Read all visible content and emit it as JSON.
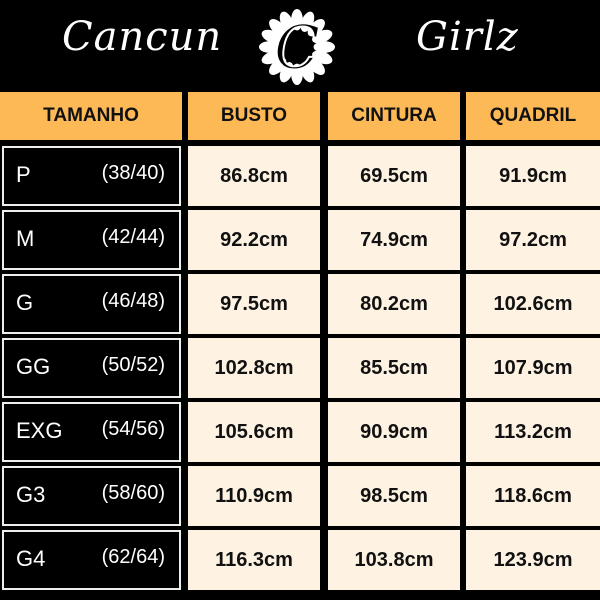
{
  "brand": {
    "left": "Cancun",
    "right": "Girlz",
    "logo_letter": "C"
  },
  "colors": {
    "header": "#FDB955",
    "cell": "#FEF2E2",
    "background": "#000000"
  },
  "headers": [
    "TAMANHO",
    "BUSTO",
    "CINTURA",
    "QUADRIL"
  ],
  "rows": [
    {
      "size": "P",
      "range": "(38/40)",
      "busto": "86.8cm",
      "cintura": "69.5cm",
      "quadril": "91.9cm"
    },
    {
      "size": "M",
      "range": "(42/44)",
      "busto": "92.2cm",
      "cintura": "74.9cm",
      "quadril": "97.2cm"
    },
    {
      "size": "G",
      "range": "(46/48)",
      "busto": "97.5cm",
      "cintura": "80.2cm",
      "quadril": "102.6cm"
    },
    {
      "size": "GG",
      "range": "(50/52)",
      "busto": "102.8cm",
      "cintura": "85.5cm",
      "quadril": "107.9cm"
    },
    {
      "size": "EXG",
      "range": "(54/56)",
      "busto": "105.6cm",
      "cintura": "90.9cm",
      "quadril": "113.2cm"
    },
    {
      "size": "G3",
      "range": "(58/60)",
      "busto": "110.9cm",
      "cintura": "98.5cm",
      "quadril": "118.6cm"
    },
    {
      "size": "G4",
      "range": "(62/64)",
      "busto": "116.3cm",
      "cintura": "103.8cm",
      "quadril": "123.9cm"
    }
  ]
}
